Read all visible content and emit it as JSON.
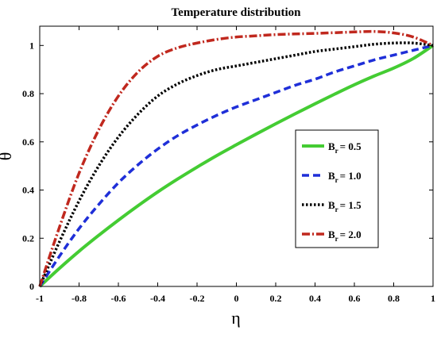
{
  "chart_data": {
    "type": "line",
    "title": "Temperature distribution",
    "xlabel": "η",
    "ylabel": "θ",
    "xlim": [
      -1,
      1
    ],
    "ylim": [
      0,
      1.08
    ],
    "xticks": [
      "-1",
      "-0.8",
      "-0.6",
      "-0.4",
      "-0.2",
      "0",
      "0.2",
      "0.4",
      "0.6",
      "0.8",
      "1"
    ],
    "yticks": [
      "0",
      "0.2",
      "0.4",
      "0.6",
      "0.8",
      "1"
    ],
    "xtick_values": [
      -1,
      -0.8,
      -0.6,
      -0.4,
      -0.2,
      0,
      0.2,
      0.4,
      0.6,
      0.8,
      1
    ],
    "ytick_values": [
      0,
      0.2,
      0.4,
      0.6,
      0.8,
      1
    ],
    "grid": false,
    "legend_position": "right",
    "x": [
      -1,
      -0.9,
      -0.8,
      -0.7,
      -0.6,
      -0.5,
      -0.4,
      -0.3,
      -0.2,
      -0.1,
      0,
      0.1,
      0.2,
      0.3,
      0.4,
      0.5,
      0.6,
      0.7,
      0.8,
      0.9,
      1
    ],
    "series": [
      {
        "legend_base": "B",
        "legend_sub": "r",
        "legend_value": "= 0.5",
        "color": "#44cc33",
        "dash": "",
        "width": 4,
        "values": [
          0,
          0.075,
          0.146,
          0.212,
          0.275,
          0.335,
          0.392,
          0.445,
          0.495,
          0.543,
          0.588,
          0.632,
          0.675,
          0.717,
          0.758,
          0.798,
          0.837,
          0.873,
          0.906,
          0.946,
          1.0
        ]
      },
      {
        "legend_base": "B",
        "legend_sub": "r",
        "legend_value": "= 1.0",
        "color": "#1f2fd8",
        "dash": "9,5",
        "width": 3.5,
        "values": [
          0,
          0.125,
          0.24,
          0.34,
          0.43,
          0.505,
          0.57,
          0.625,
          0.67,
          0.71,
          0.745,
          0.775,
          0.805,
          0.835,
          0.86,
          0.89,
          0.915,
          0.94,
          0.96,
          0.98,
          1.0
        ]
      },
      {
        "legend_base": "B",
        "legend_sub": "r",
        "legend_value": "= 1.5",
        "color": "#000000",
        "dash": "2.5,2.5",
        "width": 3.5,
        "values": [
          0,
          0.185,
          0.355,
          0.5,
          0.62,
          0.715,
          0.79,
          0.84,
          0.875,
          0.9,
          0.915,
          0.93,
          0.945,
          0.96,
          0.975,
          0.985,
          0.995,
          1.005,
          1.01,
          1.01,
          1.0
        ]
      },
      {
        "legend_base": "B",
        "legend_sub": "r",
        "legend_value": "= 2.0",
        "color": "#c0281e",
        "dash": "10,3,2,3",
        "width": 3.5,
        "values": [
          0,
          0.245,
          0.47,
          0.65,
          0.79,
          0.89,
          0.955,
          0.99,
          1.01,
          1.025,
          1.035,
          1.04,
          1.045,
          1.048,
          1.05,
          1.053,
          1.056,
          1.058,
          1.052,
          1.035,
          1.0
        ]
      }
    ]
  }
}
